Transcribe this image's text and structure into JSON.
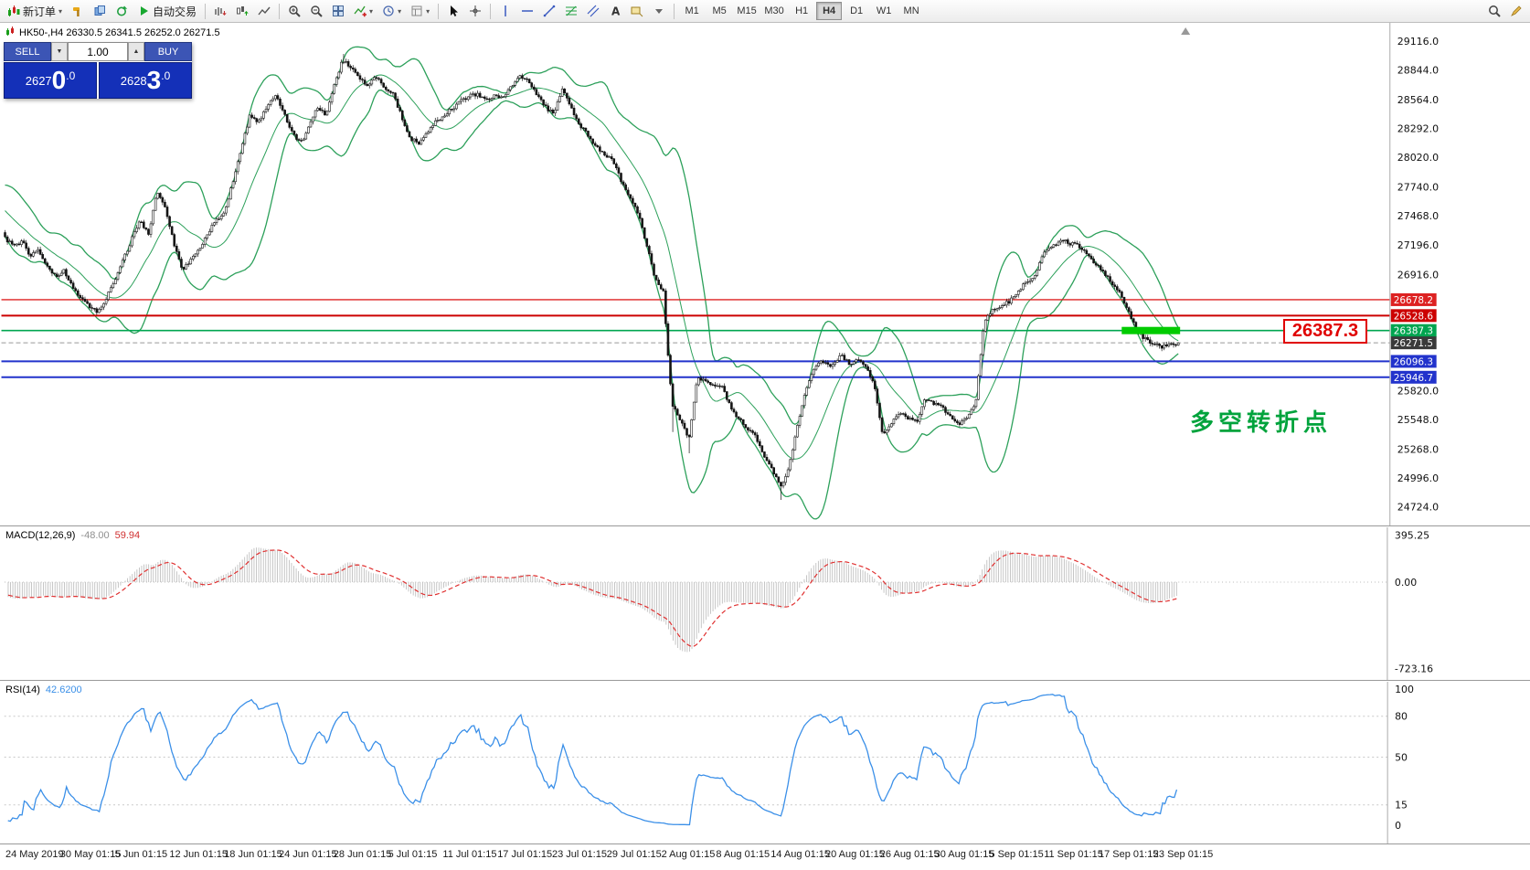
{
  "toolbar": {
    "groups": [
      {
        "type": "button",
        "name": "new-order",
        "icon": "candles",
        "label": "新订单",
        "dropdown": true
      },
      {
        "type": "icons",
        "items": [
          "hammer",
          "profiles",
          "refresh"
        ]
      },
      {
        "type": "button",
        "name": "auto-trading",
        "icon": "play",
        "label": "自动交易"
      },
      {
        "type": "sep"
      },
      {
        "type": "icons",
        "items": [
          "bars-chart",
          "candles-chart",
          "line-chart"
        ]
      },
      {
        "type": "sep"
      },
      {
        "type": "icons",
        "items": [
          "zoom-in",
          "zoom-out",
          "tile-windows",
          "indicator-add+",
          "period-clock+",
          "template+"
        ]
      },
      {
        "type": "sep"
      },
      {
        "type": "icons",
        "items": [
          "cursor",
          "crosshair"
        ]
      },
      {
        "type": "sep"
      },
      {
        "type": "icons",
        "items": [
          "vertical-line",
          "horizontal-line",
          "trendline",
          "fibonacci",
          "channel",
          "text",
          "text-label",
          "shapes-dropdown"
        ]
      },
      {
        "type": "sep"
      },
      {
        "type": "timeframes"
      },
      {
        "type": "spacer"
      },
      {
        "type": "icons",
        "items": [
          "search",
          "new-window"
        ]
      }
    ],
    "timeframes": [
      "M1",
      "M5",
      "M15",
      "M30",
      "H1",
      "H4",
      "D1",
      "W1",
      "MN"
    ],
    "active_timeframe": "H4"
  },
  "trade_panel": {
    "sell_label": "SELL",
    "buy_label": "BUY",
    "volume": "1.00",
    "vol_down_glyph": "▼",
    "vol_up_glyph": "▲",
    "sell_price": {
      "small": "2627",
      "big": "0",
      "frac": ".0"
    },
    "buy_price": {
      "small": "2628",
      "big": "3",
      "frac": ".0"
    }
  },
  "chart": {
    "symbol_header": "HK50-,H4  26330.5 26341.5 26252.0 26271.5",
    "annotation": "多空转折点",
    "price_tag": "26387.3",
    "macd_label": "MACD(12,26,9)",
    "macd_value": "-48.00",
    "macd_signal_value": "59.94",
    "rsi_label": "RSI(14)",
    "rsi_value": "42.6200"
  },
  "chart_data": {
    "type": "candlestick",
    "symbol": "HK50",
    "timeframe": "H4",
    "ohlc": {
      "open": 26330.5,
      "high": 26341.5,
      "low": 26252.0,
      "close": 26271.5
    },
    "bid": 26270.0,
    "ask": 26283.0,
    "price_axis_labels": [
      29116.0,
      28844.0,
      28564.0,
      28292.0,
      28020.0,
      27740.0,
      27468.0,
      27196.0,
      26916.0,
      25820.0,
      25548.0,
      25268.0,
      24996.0,
      24724.0
    ],
    "levels": [
      {
        "price": 26678.2,
        "color": "#dd2222",
        "width": 1.4
      },
      {
        "price": 26528.6,
        "color": "#cc0000",
        "width": 2
      },
      {
        "price": 26387.3,
        "color": "#00a550",
        "width": 1.6
      },
      {
        "price": 26271.5,
        "color": "#999999",
        "width": 1,
        "dashed": true,
        "tag": "#3a3a3a"
      },
      {
        "price": 26096.3,
        "color": "#2233cc",
        "width": 2
      },
      {
        "price": 25946.7,
        "color": "#2233cc",
        "width": 2
      }
    ],
    "highlight": {
      "price": 26387.3
    },
    "bollinger": {
      "period": 20,
      "deviation": 2
    },
    "prehistory": [
      28200,
      28150,
      28100,
      28150,
      28050,
      28000,
      27950,
      28000,
      27900,
      27850,
      27800,
      27750,
      27800,
      27700,
      27650,
      27600,
      27550,
      27500,
      27400,
      27320
    ],
    "closes": [
      27260,
      27180,
      27230,
      27090,
      27150,
      26990,
      26900,
      26950,
      26800,
      26680,
      26620,
      26560,
      26700,
      26850,
      27050,
      27250,
      27420,
      27300,
      27690,
      27550,
      27200,
      26960,
      27050,
      27150,
      27300,
      27430,
      27500,
      27800,
      28100,
      28420,
      28350,
      28500,
      28600,
      28450,
      28250,
      28150,
      28300,
      28500,
      28420,
      28700,
      28940,
      28860,
      28750,
      28700,
      28780,
      28650,
      28620,
      28400,
      28200,
      28150,
      28250,
      28350,
      28420,
      28480,
      28550,
      28600,
      28620,
      28560,
      28600,
      28580,
      28700,
      28790,
      28740,
      28600,
      28500,
      28420,
      28660,
      28500,
      28340,
      28230,
      28120,
      28050,
      27990,
      27800,
      27650,
      27500,
      27200,
      26880,
      26750,
      25700,
      25550,
      25350,
      25950,
      25900,
      25880,
      25850,
      25650,
      25550,
      25450,
      25380,
      25200,
      25050,
      24900,
      25150,
      25550,
      25850,
      26050,
      26100,
      26050,
      26150,
      26080,
      26100,
      26050,
      25880,
      25400,
      25500,
      25620,
      25560,
      25520,
      25750,
      25700,
      25660,
      25580,
      25500,
      25570,
      25700,
      26480,
      26580,
      26620,
      26660,
      26760,
      26850,
      26900,
      27120,
      27160,
      27250,
      27210,
      27200,
      27120,
      27030,
      26940,
      26850,
      26760,
      26580,
      26400,
      26310,
      26270,
      26230,
      26250,
      26271.5
    ],
    "wick_overrides": {
      "lows": {
        "284": 25430,
        "291": 25230,
        "330": 24790
      },
      "highs": {
        "144": 28995
      }
    },
    "macd": {
      "label": "MACD(12,26,9)",
      "value": -48.0,
      "signal": 59.94,
      "axis_labels": [
        395.25,
        0.0,
        -723.16
      ]
    },
    "rsi": {
      "label": "RSI(14)",
      "value": 42.62,
      "axis_labels": [
        100,
        80,
        50,
        15,
        0
      ],
      "levels": [
        80,
        50,
        15
      ]
    },
    "time_labels": [
      "24 May 2019",
      "30 May 01:15",
      "5 Jun 01:15",
      "12 Jun 01:15",
      "18 Jun 01:15",
      "24 Jun 01:15",
      "28 Jun 01:15",
      "5 Jul 01:15",
      "11 Jul 01:15",
      "17 Jul 01:15",
      "23 Jul 01:15",
      "29 Jul 01:15",
      "2 Aug 01:15",
      "8 Aug 01:15",
      "14 Aug 01:15",
      "20 Aug 01:15",
      "26 Aug 01:15",
      "30 Aug 01:15",
      "5 Sep 01:15",
      "11 Sep 01:15",
      "17 Sep 01:15",
      "23 Sep 01:15"
    ],
    "colors": {
      "bollinger": "#2ca05a",
      "bull": "#ffffff",
      "bear": "#151515",
      "outline": "#151515",
      "macd_hist": "#b8b8b8",
      "macd_signal": "#e03030",
      "rsi_line": "#3a8fe8",
      "highlight": "#00cc00"
    }
  }
}
